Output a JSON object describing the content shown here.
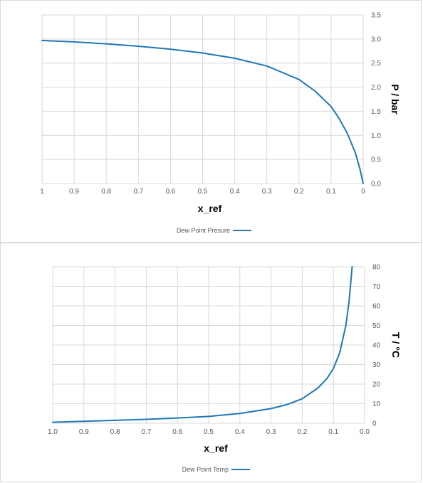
{
  "chart_data": [
    {
      "type": "line",
      "x_reversed": true,
      "xlabel": "x_ref",
      "ylabel": "P / bar",
      "xlim": [
        0,
        1
      ],
      "ylim": [
        0,
        3.5
      ],
      "xticks": [
        "0",
        "0.1",
        "0.2",
        "0.3",
        "0.4",
        "0.5",
        "0.6",
        "0.7",
        "0.8",
        "0.9",
        "1"
      ],
      "yticks": [
        "0.0",
        "0.5",
        "1.0",
        "1.5",
        "2.0",
        "2.5",
        "3.0",
        "3.5"
      ],
      "grid": true,
      "legend_position": "bottom",
      "series": [
        {
          "name": "Dew Point Presure",
          "color": "#1f77b4",
          "x": [
            1.0,
            0.9,
            0.8,
            0.7,
            0.6,
            0.5,
            0.4,
            0.3,
            0.2,
            0.15,
            0.1,
            0.075,
            0.05,
            0.025,
            0.01,
            0.0
          ],
          "y": [
            2.97,
            2.94,
            2.9,
            2.85,
            2.79,
            2.71,
            2.6,
            2.44,
            2.16,
            1.92,
            1.6,
            1.35,
            1.05,
            0.65,
            0.3,
            0.0
          ]
        }
      ]
    },
    {
      "type": "line",
      "x_reversed": true,
      "xlabel": "x_ref",
      "ylabel": "T / °C",
      "xlim": [
        0,
        1
      ],
      "ylim": [
        0,
        80
      ],
      "xticks": [
        "0.0",
        "0.1",
        "0.2",
        "0.3",
        "0.4",
        "0.5",
        "0.6",
        "0.7",
        "0.8",
        "0.9",
        "1.0"
      ],
      "yticks": [
        "0",
        "10",
        "20",
        "30",
        "40",
        "50",
        "60",
        "70",
        "80"
      ],
      "grid": true,
      "legend_position": "bottom",
      "series": [
        {
          "name": "Dew Point Temp",
          "color": "#1f77b4",
          "x": [
            1.0,
            0.9,
            0.8,
            0.7,
            0.6,
            0.5,
            0.4,
            0.3,
            0.25,
            0.2,
            0.15,
            0.12,
            0.1,
            0.08,
            0.06,
            0.05,
            0.04
          ],
          "y": [
            0.5,
            1.0,
            1.5,
            2.0,
            2.7,
            3.5,
            5.0,
            7.5,
            9.5,
            12.5,
            18.0,
            23.0,
            28.0,
            36.0,
            50.0,
            62.0,
            80.0
          ]
        }
      ]
    }
  ]
}
